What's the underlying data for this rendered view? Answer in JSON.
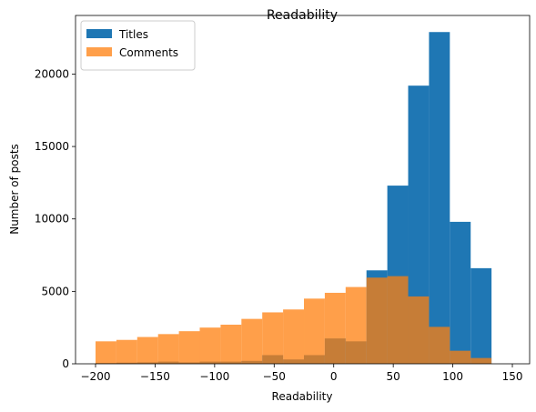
{
  "chart_data": {
    "type": "histogram",
    "title": "Readability",
    "xlabel": "Readability",
    "ylabel": "Number of posts",
    "bins": [
      -200,
      -182.5,
      -165,
      -147.5,
      -130,
      -112.5,
      -95,
      -77.5,
      -60,
      -42.5,
      -25,
      -7.5,
      10,
      27.5,
      45,
      62.5,
      80,
      97.5,
      115,
      132.5
    ],
    "series": [
      {
        "name": "Titles",
        "color": "#1f77b4",
        "opacity": 1,
        "values": [
          50,
          80,
          100,
          150,
          100,
          150,
          150,
          200,
          600,
          300,
          600,
          1750,
          1550,
          6450,
          12300,
          19200,
          22900,
          9800,
          6600
        ]
      },
      {
        "name": "Comments",
        "color": "#ff7f0e",
        "opacity": 0.75,
        "values": [
          1550,
          1650,
          1850,
          2050,
          2250,
          2500,
          2700,
          3100,
          3550,
          3750,
          4500,
          4900,
          5300,
          5950,
          6050,
          4650,
          2550,
          900,
          400
        ]
      }
    ],
    "xlim": [
      -216.8,
      164.5
    ],
    "ylim": [
      0,
      24045
    ],
    "xticks": [
      {
        "value": -200,
        "label": "−200"
      },
      {
        "value": -150,
        "label": "−150"
      },
      {
        "value": -100,
        "label": "−100"
      },
      {
        "value": -50,
        "label": "−50"
      },
      0,
      50,
      100,
      150
    ],
    "yticks": [
      0,
      5000,
      10000,
      15000,
      20000
    ],
    "legend": "upper left"
  }
}
